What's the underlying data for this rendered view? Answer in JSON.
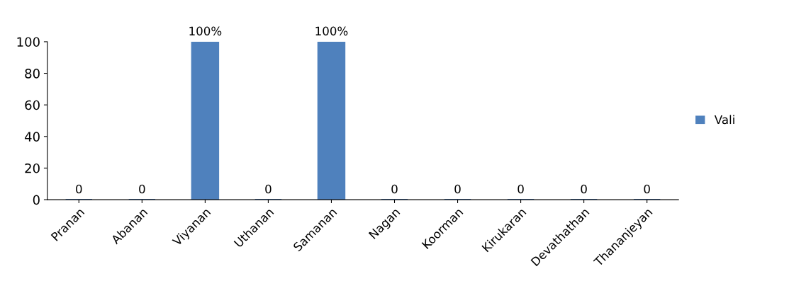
{
  "chart_data": {
    "type": "bar",
    "categories": [
      "Pranan",
      "Abanan",
      "Viyanan",
      "Uthanan",
      "Samanan",
      "Nagan",
      "Koorman",
      "Kirukaran",
      "Devathathan",
      "Thananjeyan"
    ],
    "series": [
      {
        "name": "Vali",
        "color": "#4f81bd",
        "values": [
          0,
          0,
          100,
          0,
          100,
          0,
          0,
          0,
          0,
          0
        ],
        "value_labels": [
          "0",
          "0",
          "100%",
          "0",
          "100%",
          "0",
          "0",
          "0",
          "0",
          "0"
        ]
      }
    ],
    "ylim": [
      0,
      100
    ],
    "yticks": [
      0,
      20,
      40,
      60,
      80,
      100
    ],
    "grid": false,
    "legend": "right"
  }
}
